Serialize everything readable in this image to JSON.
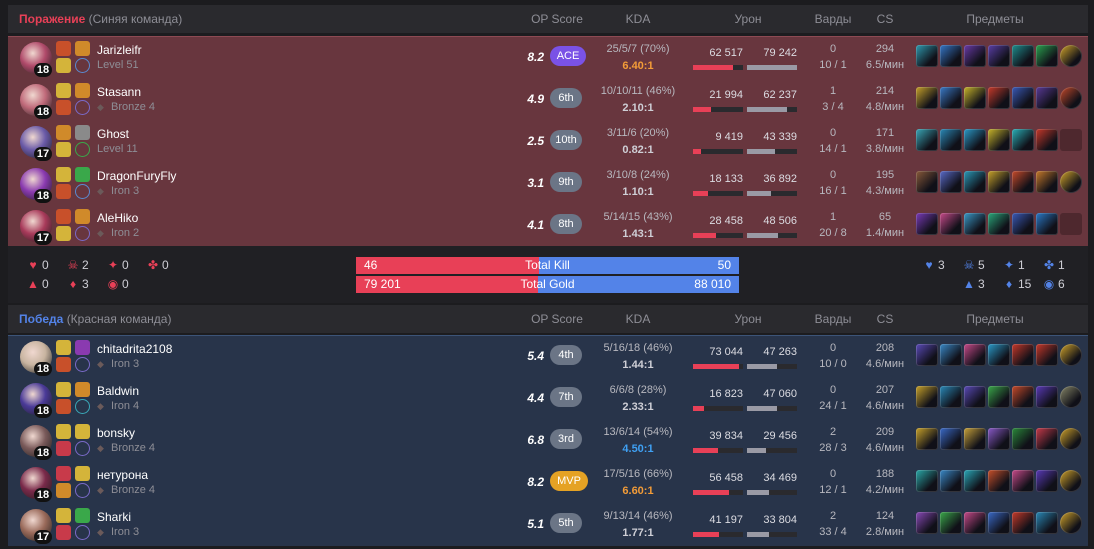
{
  "columns": {
    "op": "OP Score",
    "kda": "KDA",
    "damage": "Урон",
    "wards": "Варды",
    "cs": "CS",
    "items": "Предметы"
  },
  "loss_team": {
    "result": "Поражение",
    "label": "(Синяя команда)",
    "players": [
      {
        "name": "Jarizleifr",
        "rank": "Level 51",
        "rank_icon": false,
        "lvl": "18",
        "op": "8.2",
        "badge": "ACE",
        "badge_type": "ace",
        "kda_line": "25/5/7 (70%)",
        "kda_ratio": "6.40:1",
        "kda_color": "orange",
        "dealt": "62 517",
        "taken": "79 242",
        "dealt_pct": 0.79,
        "taken_pct": 1.0,
        "wards1": "0",
        "wards2": "10 / 1",
        "cs1": "294",
        "cs2": "6.5/мин",
        "champ_color": "#b04a6a",
        "spells": [
          "#c8502a",
          "#d4b43a",
          "#d08a2a",
          "#5a8ad0"
        ],
        "items": [
          "#2f9bb0",
          "#3577c8",
          "#6a3aa8",
          "#5b3fa8",
          "#1f8f8f",
          "#2aa34f",
          "#d4a62a"
        ]
      },
      {
        "name": "Stasann",
        "rank": "Bronze 4",
        "rank_icon": true,
        "lvl": "18",
        "op": "4.9",
        "badge": "6th",
        "badge_type": "rank",
        "kda_line": "10/10/11 (46%)",
        "kda_ratio": "2.10:1",
        "kda_color": "",
        "dealt": "21 994",
        "taken": "62 237",
        "dealt_pct": 0.35,
        "taken_pct": 0.79,
        "wards1": "1",
        "wards2": "3 / 4",
        "cs1": "214",
        "cs2": "4.8/мин",
        "champ_color": "#c06a7a",
        "spells": [
          "#d4b43a",
          "#c8502a",
          "#d08a2a",
          "#7a6ac8"
        ],
        "items": [
          "#c8a22a",
          "#3a7ac8",
          "#c8b42a",
          "#c83a2a",
          "#3a5ab8",
          "#5a3a98",
          "#c84a2a"
        ]
      },
      {
        "name": "Ghost",
        "rank": "Level 11",
        "rank_icon": false,
        "lvl": "17",
        "op": "2.5",
        "badge": "10th",
        "badge_type": "rank",
        "kda_line": "3/11/6 (20%)",
        "kda_ratio": "0.82:1",
        "kda_color": "",
        "dealt": "9 419",
        "taken": "43 339",
        "dealt_pct": 0.15,
        "taken_pct": 0.55,
        "wards1": "0",
        "wards2": "14 / 1",
        "cs1": "171",
        "cs2": "3.8/мин",
        "champ_color": "#6a5aa8",
        "spells": [
          "#d08a2a",
          "#d4b43a",
          "#8a8a8a",
          "#3aa84a"
        ],
        "items": [
          "#3aa8b8",
          "#2a8ab8",
          "#2a9ac8",
          "#c8b42a",
          "#2ab0b8",
          "#c8382a",
          ""
        ]
      },
      {
        "name": "DragonFuryFly",
        "rank": "Iron 3",
        "rank_icon": true,
        "lvl": "18",
        "op": "3.1",
        "badge": "9th",
        "badge_type": "rank",
        "kda_line": "3/10/8 (24%)",
        "kda_ratio": "1.10:1",
        "kda_color": "",
        "dealt": "18 133",
        "taken": "36 892",
        "dealt_pct": 0.29,
        "taken_pct": 0.47,
        "wards1": "0",
        "wards2": "16 / 1",
        "cs1": "195",
        "cs2": "4.3/мин",
        "champ_color": "#8a3ab0",
        "spells": [
          "#d4b43a",
          "#c8502a",
          "#3aa84a",
          "#5a8ad0"
        ],
        "items": [
          "#8a5a3a",
          "#5a6ac8",
          "#2a9ab8",
          "#c8a22a",
          "#c84a2a",
          "#c87a2a",
          "#d4a62a"
        ]
      },
      {
        "name": "AleHiko",
        "rank": "Iron 2",
        "rank_icon": true,
        "lvl": "17",
        "op": "4.1",
        "badge": "8th",
        "badge_type": "rank",
        "kda_line": "5/14/15 (43%)",
        "kda_ratio": "1.43:1",
        "kda_color": "",
        "dealt": "28 458",
        "taken": "48 506",
        "dealt_pct": 0.46,
        "taken_pct": 0.61,
        "wards1": "1",
        "wards2": "20 / 8",
        "cs1": "65",
        "cs2": "1.4/мин",
        "champ_color": "#a83a5a",
        "spells": [
          "#c8502a",
          "#d4b43a",
          "#d08a2a",
          "#7a6ac8"
        ],
        "items": [
          "#7a3ab8",
          "#c84a8a",
          "#3a9ac8",
          "#2aa87a",
          "#3a5ab8",
          "#2a7ac8",
          ""
        ]
      }
    ]
  },
  "win_team": {
    "result": "Победа",
    "label": "(Красная команда)",
    "players": [
      {
        "name": "chitadrita2108",
        "rank": "Iron 3",
        "rank_icon": true,
        "lvl": "18",
        "op": "5.4",
        "badge": "4th",
        "badge_type": "rank",
        "kda_line": "5/16/18 (46%)",
        "kda_ratio": "1.44:1",
        "kda_color": "",
        "dealt": "73 044",
        "taken": "47 263",
        "dealt_pct": 0.92,
        "taken_pct": 0.6,
        "wards1": "0",
        "wards2": "10 / 0",
        "cs1": "208",
        "cs2": "4.6/мин",
        "champ_color": "#c8b4a0",
        "spells": [
          "#d4b43a",
          "#c8502a",
          "#8a3ab0",
          "#7a6ac8"
        ],
        "items": [
          "#5a4ab8",
          "#3a8ac8",
          "#c84a8a",
          "#2a9ac8",
          "#c8382a",
          "#c8382a",
          "#d4a62a"
        ]
      },
      {
        "name": "Baldwin",
        "rank": "Iron 4",
        "rank_icon": true,
        "lvl": "18",
        "op": "4.4",
        "badge": "7th",
        "badge_type": "rank",
        "kda_line": "6/6/8 (28%)",
        "kda_ratio": "2.33:1",
        "kda_color": "",
        "dealt": "16 823",
        "taken": "47 060",
        "dealt_pct": 0.21,
        "taken_pct": 0.59,
        "wards1": "0",
        "wards2": "24 / 1",
        "cs1": "207",
        "cs2": "4.6/мин",
        "champ_color": "#4a3a98",
        "spells": [
          "#d4b43a",
          "#c8502a",
          "#d08a2a",
          "#3aa8b8"
        ],
        "items": [
          "#c8a22a",
          "#2a8ab8",
          "#5a4ab8",
          "#3aa84a",
          "#c84a2a",
          "#5a3ab8",
          "#8a8a6a"
        ]
      },
      {
        "name": "bonsky",
        "rank": "Bronze 4",
        "rank_icon": true,
        "lvl": "18",
        "op": "6.8",
        "badge": "3rd",
        "badge_type": "rank",
        "kda_line": "13/6/14 (54%)",
        "kda_ratio": "4.50:1",
        "kda_color": "blue",
        "dealt": "39 834",
        "taken": "29 456",
        "dealt_pct": 0.5,
        "taken_pct": 0.37,
        "wards1": "2",
        "wards2": "28 / 3",
        "cs1": "209",
        "cs2": "4.6/мин",
        "champ_color": "#7a5a5a",
        "spells": [
          "#d4b43a",
          "#c83a4a",
          "#d4b43a",
          "#7a6ac8"
        ],
        "items": [
          "#c8a22a",
          "#3a6ac8",
          "#c8a23a",
          "#8a5ac8",
          "#2a8a3a",
          "#c83a4a",
          "#d4a62a"
        ]
      },
      {
        "name": "нетурона",
        "rank": "Bronze 4",
        "rank_icon": true,
        "lvl": "18",
        "op": "8.2",
        "badge": "MVP",
        "badge_type": "mvp",
        "kda_line": "17/5/16 (66%)",
        "kda_ratio": "6.60:1",
        "kda_color": "orange",
        "dealt": "56 458",
        "taken": "34 469",
        "dealt_pct": 0.71,
        "taken_pct": 0.43,
        "wards1": "0",
        "wards2": "12 / 1",
        "cs1": "188",
        "cs2": "4.2/мин",
        "champ_color": "#7a2a4a",
        "spells": [
          "#c83a4a",
          "#d08a2a",
          "#d4b43a",
          "#7a6ac8"
        ],
        "items": [
          "#2aa8a8",
          "#3a8ac8",
          "#2aa8b8",
          "#c8502a",
          "#c84a8a",
          "#5a3ab8",
          "#d4a62a"
        ]
      },
      {
        "name": "Sharki",
        "rank": "Iron 3",
        "rank_icon": true,
        "lvl": "17",
        "op": "5.1",
        "badge": "5th",
        "badge_type": "rank",
        "kda_line": "9/13/14 (46%)",
        "kda_ratio": "1.77:1",
        "kda_color": "",
        "dealt": "41 197",
        "taken": "33 804",
        "dealt_pct": 0.52,
        "taken_pct": 0.43,
        "wards1": "2",
        "wards2": "33 / 4",
        "cs1": "124",
        "cs2": "2.8/мин",
        "champ_color": "#9a6a5a",
        "spells": [
          "#d4b43a",
          "#c83a4a",
          "#3aa84a",
          "#7a6ac8"
        ],
        "items": [
          "#8a4ab8",
          "#3aa84a",
          "#c84a8a",
          "#3a6ac8",
          "#c83a2a",
          "#2a8ab8",
          "#d4a62a"
        ]
      }
    ]
  },
  "summary": {
    "loss_objectives": [
      [
        "0",
        "2",
        "0",
        "0"
      ],
      [
        "0",
        "3",
        "0"
      ]
    ],
    "win_objectives": [
      [
        "3",
        "5",
        "1",
        "1"
      ],
      [
        "3",
        "15",
        "6"
      ]
    ],
    "kill": {
      "label": "Total Kill",
      "left": "46",
      "right": "50",
      "left_frac": 0.479
    },
    "gold": {
      "label": "Total Gold",
      "left": "79 201",
      "right": "88 010",
      "left_frac": 0.474
    }
  }
}
